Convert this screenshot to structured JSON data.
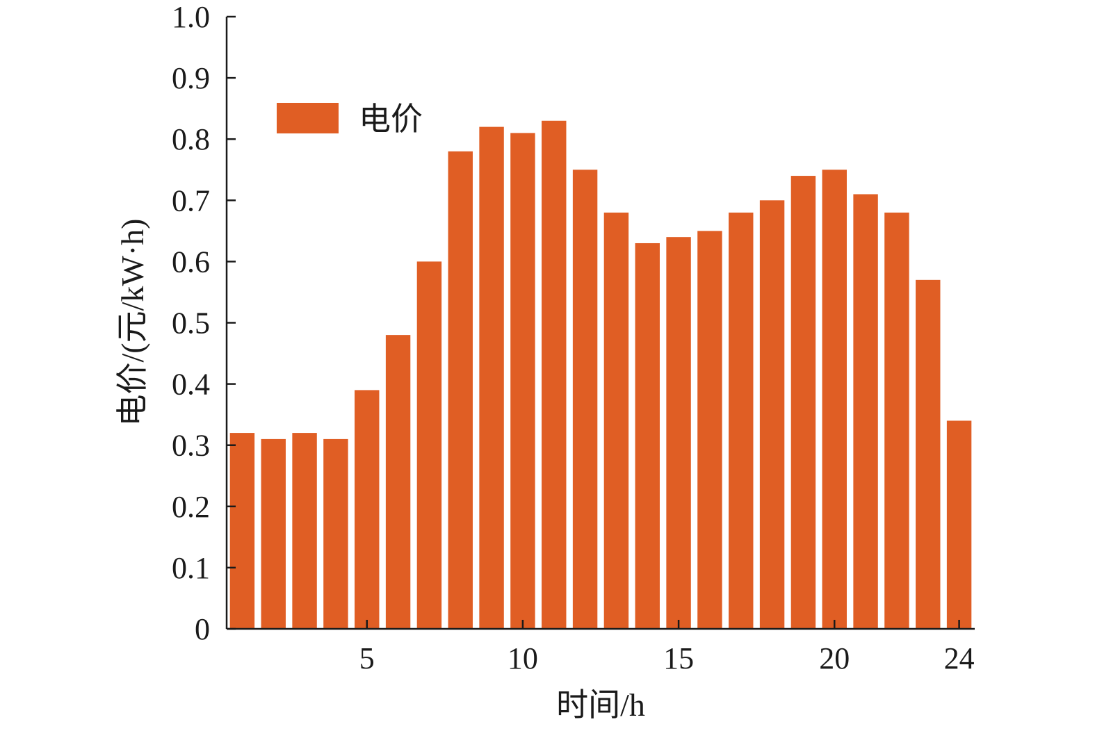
{
  "chart_data": {
    "type": "bar",
    "categories": [
      "1",
      "2",
      "3",
      "4",
      "5",
      "6",
      "7",
      "8",
      "9",
      "10",
      "11",
      "12",
      "13",
      "14",
      "15",
      "16",
      "17",
      "18",
      "19",
      "20",
      "21",
      "22",
      "23",
      "24"
    ],
    "series": [
      {
        "name": "电价",
        "values": [
          0.32,
          0.31,
          0.32,
          0.31,
          0.39,
          0.48,
          0.6,
          0.78,
          0.82,
          0.81,
          0.83,
          0.75,
          0.68,
          0.63,
          0.64,
          0.65,
          0.68,
          0.7,
          0.74,
          0.75,
          0.71,
          0.68,
          0.57,
          0.34
        ],
        "color": "#e05e24"
      }
    ],
    "xlabel": "时间/h",
    "ylabel": "电价/(元/kW·h)",
    "ylim": [
      0,
      1.0
    ],
    "xlim": [
      0.5,
      24.5
    ],
    "x_ticks": [
      5,
      10,
      15,
      20,
      24
    ],
    "x_tick_labels": [
      "5",
      "10",
      "15",
      "20",
      "24"
    ],
    "y_ticks": [
      0,
      0.1,
      0.2,
      0.3,
      0.4,
      0.5,
      0.6,
      0.7,
      0.8,
      0.9,
      1.0
    ],
    "y_tick_labels": [
      "0",
      "0.1",
      "0.2",
      "0.3",
      "0.4",
      "0.5",
      "0.6",
      "0.7",
      "0.8",
      "0.9",
      "1.0"
    ],
    "legend": {
      "position": "top-left",
      "label": "电价"
    },
    "grid": false
  }
}
